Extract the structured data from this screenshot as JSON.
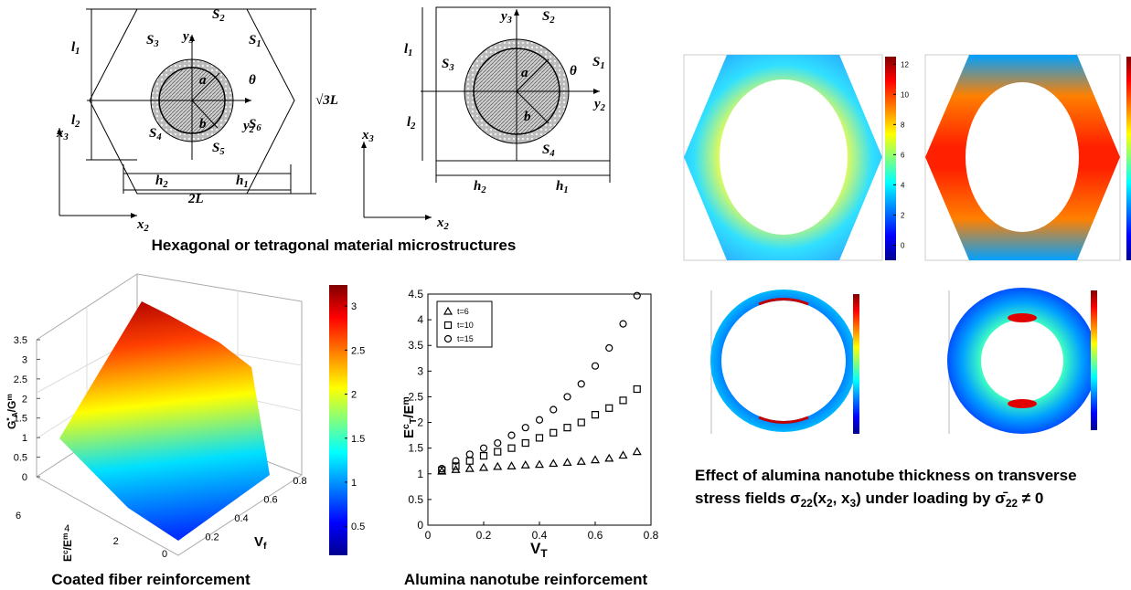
{
  "hexagonal_diagram": {
    "labels": [
      [
        "S",
        {
          "sub": "2"
        }
      ],
      [
        "S",
        {
          "sub": "3"
        }
      ],
      [
        "S",
        {
          "sub": "1"
        }
      ],
      [
        "y",
        {
          "sub": "3"
        }
      ],
      [
        "a"
      ],
      [
        "θ"
      ],
      [
        "√3L"
      ],
      [
        "l",
        {
          "sub": "1"
        }
      ],
      [
        "y",
        {
          "sub": "2"
        }
      ],
      [
        "l",
        {
          "sub": "2"
        }
      ],
      [
        "b"
      ],
      [
        "S",
        {
          "sub": "6"
        }
      ],
      [
        "S",
        {
          "sub": "4"
        }
      ],
      [
        "S",
        {
          "sub": "5"
        }
      ],
      [
        "x",
        {
          "sub": "3"
        }
      ],
      [
        "h",
        {
          "sub": "2"
        }
      ],
      [
        "h",
        {
          "sub": "1"
        }
      ],
      [
        "2L"
      ],
      [
        "x",
        {
          "sub": "2"
        }
      ]
    ]
  },
  "tetragonal_diagram": {
    "labels": [
      [
        "y",
        {
          "sub": "3"
        }
      ],
      [
        "S",
        {
          "sub": "2"
        }
      ],
      [
        "l",
        {
          "sub": "1"
        }
      ],
      [
        "S",
        {
          "sub": "3"
        }
      ],
      [
        "S",
        {
          "sub": "1"
        }
      ],
      [
        "a"
      ],
      [
        "θ"
      ],
      [
        "y",
        {
          "sub": "2"
        }
      ],
      [
        "b"
      ],
      [
        "l",
        {
          "sub": "2"
        }
      ],
      [
        "S",
        {
          "sub": "4"
        }
      ],
      [
        "x",
        {
          "sub": "3"
        }
      ],
      [
        "h",
        {
          "sub": "2"
        }
      ],
      [
        "h",
        {
          "sub": "1"
        }
      ],
      [
        "x",
        {
          "sub": "2"
        }
      ]
    ]
  },
  "captions": {
    "microstructures": "Hexagonal or tetragonal material microstructures",
    "coated_fiber": "Coated fiber reinforcement",
    "alumina": "Alumina nanotube reinforcement",
    "stress_line1": "Effect of alumina nanotube thickness on transverse",
    "stress_line2": [
      "stress fields ",
      "σ",
      {
        "sub": "22"
      },
      "(x",
      {
        "sub": "2"
      },
      ", x",
      {
        "sub": "3"
      },
      ") under loading by ",
      "σ̄",
      {
        "sub": "22"
      },
      " ≠ 0"
    ]
  },
  "stress_colorbar": {
    "clim": [
      -1,
      12.5
    ],
    "ticks": [
      0,
      2,
      4,
      6,
      8,
      10,
      12
    ]
  },
  "surface_plot": {
    "zlabel": [
      "G",
      {
        "sup": "*"
      },
      {
        "sub": "A"
      },
      "/G",
      {
        "sup": "m"
      }
    ],
    "xlabel": [
      "E",
      {
        "sup": "c"
      },
      "/E",
      {
        "sup": "m"
      }
    ],
    "ylabel": [
      "V",
      {
        "sub": "f"
      }
    ],
    "zlim": [
      0,
      3.5
    ],
    "zticks": [
      0,
      0.5,
      1,
      1.5,
      2,
      2.5,
      3,
      3.5
    ],
    "xlim": [
      0,
      6
    ],
    "xticks": [
      0,
      2,
      4,
      6
    ],
    "ylim": [
      0,
      0.8
    ],
    "yticks": [
      0.2,
      0.4,
      0.6,
      0.8
    ],
    "clim": [
      0.17,
      3.24
    ],
    "cticks": [
      0.5,
      1,
      1.5,
      2,
      2.5,
      3
    ]
  },
  "chart_data": {
    "type": "scatter",
    "xlabel": [
      "V",
      {
        "sub": "T"
      }
    ],
    "ylabel": [
      "E",
      {
        "sup": "c"
      },
      {
        "sub": "T"
      },
      "/E",
      {
        "sup": "m"
      }
    ],
    "x": [
      0.05,
      0.1,
      0.15,
      0.2,
      0.25,
      0.3,
      0.35,
      0.4,
      0.45,
      0.5,
      0.55,
      0.6,
      0.65,
      0.7,
      0.75
    ],
    "series": [
      {
        "name": "t=6",
        "color": "#000000",
        "marker": "triangle",
        "values": [
          1.05,
          1.08,
          1.1,
          1.12,
          1.14,
          1.15,
          1.17,
          1.18,
          1.2,
          1.22,
          1.24,
          1.27,
          1.3,
          1.36,
          1.43
        ]
      },
      {
        "name": "t=10",
        "color": "#000000",
        "marker": "square",
        "values": [
          1.07,
          1.15,
          1.25,
          1.35,
          1.43,
          1.5,
          1.6,
          1.7,
          1.8,
          1.9,
          2.0,
          2.15,
          2.28,
          2.43,
          2.65
        ]
      },
      {
        "name": "t=15",
        "color": "#000000",
        "marker": "circle",
        "values": [
          1.1,
          1.25,
          1.38,
          1.5,
          1.6,
          1.75,
          1.9,
          2.05,
          2.25,
          2.5,
          2.75,
          3.1,
          3.45,
          3.92,
          4.47
        ]
      }
    ],
    "xlim": [
      0,
      0.8
    ],
    "ylim": [
      0,
      4.5
    ],
    "xticks": [
      0,
      0.2,
      0.4,
      0.6,
      0.8
    ],
    "yticks": [
      0,
      0.5,
      1,
      1.5,
      2,
      2.5,
      3,
      3.5,
      4,
      4.5
    ],
    "legend": "upper-left"
  }
}
